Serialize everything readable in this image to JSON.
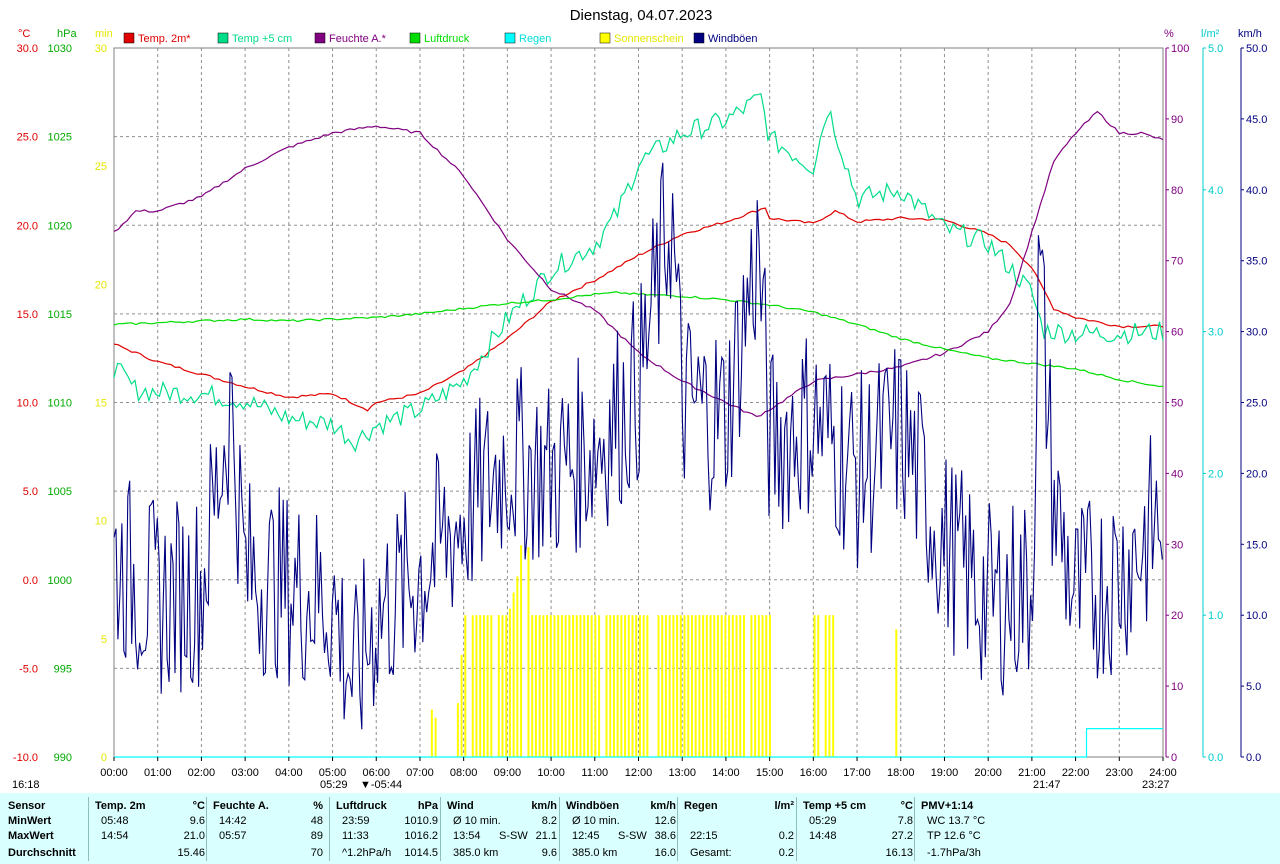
{
  "chart_data": {
    "type": "line",
    "title": "Dienstag, 04.07.2023",
    "x_ticks": [
      "00:00",
      "01:00",
      "02:00",
      "03:00",
      "04:00",
      "05:00",
      "06:00",
      "07:00",
      "08:00",
      "09:00",
      "10:00",
      "11:00",
      "12:00",
      "13:00",
      "14:00",
      "15:00",
      "16:00",
      "17:00",
      "18:00",
      "19:00",
      "20:00",
      "21:00",
      "22:00",
      "23:00",
      "24:00"
    ],
    "x_range_hours": [
      0,
      24
    ],
    "grid": true,
    "legend_position": "top",
    "legend": [
      {
        "label": "Temp. 2m*",
        "color": "#e00000"
      },
      {
        "label": "Temp +5 cm",
        "color": "#00dd88"
      },
      {
        "label": "Feuchte A.*",
        "color": "#800080"
      },
      {
        "label": "Luftdruck",
        "color": "#00dd00"
      },
      {
        "label": "Regen",
        "color": "#00ffff"
      },
      {
        "label": "Sonnenschein",
        "color": "#ffff00"
      },
      {
        "label": "Windböen",
        "color": "#000080"
      }
    ],
    "axes": {
      "temp": {
        "unit": "°C",
        "range": [
          -10,
          30
        ],
        "ticks": [
          "-10.0",
          "-5.0",
          "0.0",
          "5.0",
          "10.0",
          "15.0",
          "20.0",
          "25.0",
          "30.0"
        ],
        "color": "#e00000"
      },
      "pressure": {
        "unit": "hPa",
        "range": [
          990,
          1030
        ],
        "ticks": [
          "990",
          "995",
          "1000",
          "1005",
          "1010",
          "1015",
          "1020",
          "1025",
          "1030"
        ],
        "color": "#00aa00"
      },
      "sun": {
        "unit": "min",
        "range": [
          0,
          30
        ],
        "ticks": [
          "0",
          "5",
          "10",
          "15",
          "20",
          "25",
          "30"
        ],
        "color": "#e6e600"
      },
      "humidity": {
        "unit": "%",
        "range": [
          0,
          100
        ],
        "ticks": [
          "0",
          "10",
          "20",
          "30",
          "40",
          "50",
          "60",
          "70",
          "80",
          "90",
          "100"
        ],
        "color": "#800080"
      },
      "rain": {
        "unit": "l/m²",
        "range": [
          0,
          5
        ],
        "ticks": [
          "0.0",
          "1.0",
          "2.0",
          "3.0",
          "4.0",
          "5.0"
        ],
        "color": "#00cccc"
      },
      "wind": {
        "unit": "km/h",
        "range": [
          0,
          50
        ],
        "ticks": [
          "0.0",
          "5.0",
          "10.0",
          "15.0",
          "20.0",
          "25.0",
          "30.0",
          "35.0",
          "40.0",
          "45.0",
          "50.0"
        ],
        "color": "#000080"
      }
    },
    "series": [
      {
        "name": "Temp. 2m*",
        "color": "#e00000",
        "axis": "temp",
        "x": [
          "00:00",
          "01:00",
          "02:00",
          "03:00",
          "04:00",
          "05:00",
          "05:48",
          "06:00",
          "07:00",
          "08:00",
          "09:00",
          "10:00",
          "11:00",
          "12:00",
          "13:00",
          "14:00",
          "14:54",
          "15:00",
          "16:00",
          "16:30",
          "17:00",
          "18:00",
          "19:00",
          "20:00",
          "20:30",
          "21:00",
          "21:30",
          "22:00",
          "23:00",
          "24:00"
        ],
        "y": [
          13.3,
          12.3,
          11.6,
          10.9,
          10.3,
          10.5,
          9.6,
          10.0,
          10.5,
          11.8,
          13.6,
          15.7,
          16.9,
          18.3,
          19.5,
          20.2,
          21.0,
          20.4,
          20.1,
          20.8,
          20.2,
          20.4,
          20.3,
          19.5,
          18.9,
          17.6,
          15.3,
          14.8,
          14.3,
          14.3
        ]
      },
      {
        "name": "Temp +5 cm",
        "color": "#00dd88",
        "axis": "temp",
        "x": [
          "00:00",
          "00:30",
          "01:00",
          "02:00",
          "03:00",
          "04:00",
          "05:00",
          "05:29",
          "06:00",
          "07:00",
          "08:00",
          "09:00",
          "10:00",
          "11:00",
          "11:30",
          "12:00",
          "13:00",
          "14:00",
          "14:48",
          "15:00",
          "16:00",
          "16:20",
          "17:00",
          "18:00",
          "19:00",
          "20:00",
          "21:00",
          "21:15",
          "22:00",
          "23:00",
          "24:00"
        ],
        "y": [
          12.0,
          10.7,
          10.6,
          10.5,
          10.1,
          9.1,
          8.8,
          7.8,
          8.7,
          9.6,
          11.2,
          14.7,
          17.5,
          18.9,
          20.6,
          23.5,
          25.2,
          25.9,
          27.2,
          24.9,
          23.3,
          26.7,
          21.5,
          22.0,
          19.8,
          19.0,
          16.2,
          14.1,
          13.9,
          13.9,
          14.0
        ]
      },
      {
        "name": "Feuchte A.*",
        "color": "#800080",
        "axis": "humidity",
        "x": [
          "00:00",
          "00:30",
          "01:00",
          "02:00",
          "03:00",
          "04:00",
          "04:30",
          "05:00",
          "05:57",
          "06:00",
          "07:00",
          "08:00",
          "09:00",
          "10:00",
          "11:00",
          "12:00",
          "13:00",
          "14:00",
          "14:42",
          "15:00",
          "16:00",
          "17:00",
          "18:00",
          "19:00",
          "20:00",
          "20:30",
          "21:00",
          "21:30",
          "22:00",
          "22:30",
          "23:00",
          "23:30",
          "24:00"
        ],
        "y": [
          74,
          77,
          77,
          79,
          83,
          86,
          87,
          88,
          89,
          89,
          88,
          82,
          73,
          66,
          63,
          57,
          53,
          50,
          48,
          49,
          53,
          54,
          55,
          57,
          60,
          64,
          74,
          84,
          88,
          91,
          88,
          88,
          87
        ]
      },
      {
        "name": "Luftdruck",
        "color": "#00dd00",
        "axis": "pressure",
        "x": [
          "00:00",
          "01:00",
          "02:00",
          "03:00",
          "04:00",
          "05:00",
          "06:00",
          "07:00",
          "08:00",
          "09:00",
          "10:00",
          "11:00",
          "11:33",
          "12:00",
          "13:00",
          "14:00",
          "15:00",
          "16:00",
          "17:00",
          "18:00",
          "19:00",
          "20:00",
          "21:00",
          "22:00",
          "23:00",
          "23:59",
          "24:00"
        ],
        "y": [
          1014.4,
          1014.5,
          1014.6,
          1014.7,
          1014.6,
          1014.7,
          1014.8,
          1015.0,
          1015.3,
          1015.6,
          1015.8,
          1016.1,
          1016.2,
          1016.1,
          1016.0,
          1015.8,
          1015.5,
          1015.1,
          1014.4,
          1013.6,
          1013.0,
          1012.5,
          1012.2,
          1011.9,
          1011.3,
          1010.9,
          1010.9
        ]
      },
      {
        "name": "Windböen",
        "color": "#000080",
        "axis": "wind",
        "x": [
          "00:00",
          "01:00",
          "02:00",
          "02:40",
          "03:00",
          "04:00",
          "05:00",
          "05:30",
          "06:00",
          "07:00",
          "08:00",
          "09:00",
          "10:00",
          "11:00",
          "12:00",
          "12:45",
          "13:00",
          "14:00",
          "14:45",
          "15:00",
          "16:00",
          "17:00",
          "18:00",
          "19:00",
          "20:00",
          "21:00",
          "21:10",
          "21:30",
          "22:00",
          "23:00",
          "24:00"
        ],
        "y": [
          14,
          11,
          12,
          25,
          13,
          12,
          11,
          5,
          10,
          13,
          17,
          21,
          20,
          22,
          26,
          38.6,
          25,
          24,
          36,
          22,
          24,
          20,
          23,
          15,
          11,
          12,
          35,
          18,
          11,
          13,
          17
        ]
      },
      {
        "name": "Regen",
        "color": "#00ffff",
        "axis": "rain",
        "x": [
          "00:00",
          "22:15",
          "22:15",
          "24:00"
        ],
        "y": [
          0,
          0,
          0.2,
          0.2
        ]
      },
      {
        "name": "Sonnenschein",
        "color": "#ffff00",
        "axis": "sun",
        "x": [
          "07:15",
          "07:45",
          "08:00",
          "09:00",
          "09:15",
          "09:20",
          "09:25",
          "09:30",
          "10:00",
          "11:00",
          "12:00",
          "13:00",
          "14:00",
          "14:45",
          "16:00",
          "16:30",
          "17:15",
          "17:30",
          "17:55"
        ],
        "y": [
          2,
          0,
          6,
          6,
          8,
          10,
          12,
          6,
          6,
          6,
          6,
          6,
          6,
          6,
          6,
          6,
          6,
          0,
          6
        ]
      }
    ],
    "sun_markers": {
      "sunrise": "05:29",
      "sunrise2": "05:44",
      "sunset": "21:47",
      "start_label": "16:18",
      "end_label": "23:27"
    }
  },
  "stats": {
    "columns": [
      {
        "header": "Sensor",
        "unit": "",
        "rows": [
          "MinWert",
          "MaxWert",
          "Durchschnitt"
        ],
        "values": []
      },
      {
        "header": "Temp. 2m",
        "unit": "°C",
        "rows": [
          "05:48",
          "14:54",
          ""
        ],
        "values": [
          "9.6",
          "21.0",
          "15.46"
        ]
      },
      {
        "header": "Feuchte A.",
        "unit": "%",
        "rows": [
          "14:42",
          "05:57",
          ""
        ],
        "values": [
          "48",
          "89",
          "70"
        ]
      },
      {
        "header": "Luftdruck",
        "unit": "hPa",
        "rows": [
          "23:59",
          "11:33",
          "^1.2hPa/h"
        ],
        "values": [
          "1010.9",
          "1016.2",
          "1014.5"
        ]
      },
      {
        "header": "Wind",
        "unit": "km/h",
        "rows": [
          "Ø 10 min.",
          "13:54",
          "385.0 km"
        ],
        "mid": [
          "",
          "S-SW",
          ""
        ],
        "values": [
          "8.2",
          "21.1",
          "9.6"
        ]
      },
      {
        "header": "Windböen",
        "unit": "km/h",
        "rows": [
          "Ø 10 min.",
          "12:45",
          "385.0 km"
        ],
        "mid": [
          "",
          "S-SW",
          ""
        ],
        "values": [
          "12.6",
          "38.6",
          "16.0"
        ]
      },
      {
        "header": "Regen",
        "unit": "l/m²",
        "rows": [
          "",
          "22:15",
          "Gesamt:"
        ],
        "values": [
          "",
          "0.2",
          "0.2"
        ]
      },
      {
        "header": "Temp +5 cm",
        "unit": "°C",
        "rows": [
          "05:29",
          "14:48",
          ""
        ],
        "values": [
          "7.8",
          "27.2",
          "16.13"
        ]
      },
      {
        "header": "PMV+1:14",
        "unit": "",
        "rows": [
          "WC 13.7 °C",
          "TP 12.6 °C",
          "-1.7hPa/3h"
        ],
        "values": []
      }
    ]
  }
}
